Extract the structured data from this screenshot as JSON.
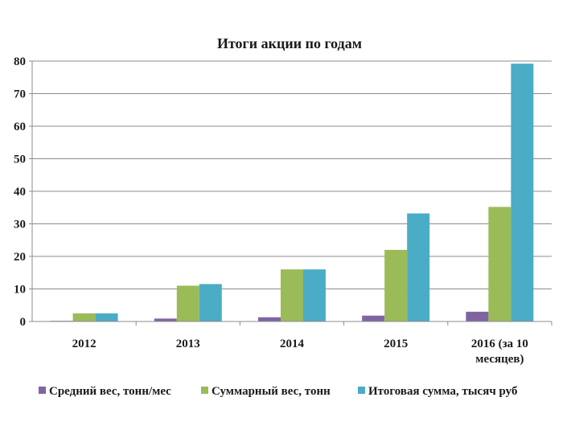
{
  "chart_data": {
    "type": "bar",
    "title": "Итоги акции по годам",
    "categories": [
      "2012",
      "2013",
      "2014",
      "2015",
      "2016 (за 10 месяцев)"
    ],
    "category_lines": [
      [
        "2012"
      ],
      [
        "2013"
      ],
      [
        "2014"
      ],
      [
        "2015"
      ],
      [
        "2016 (за 10",
        "месяцев)"
      ]
    ],
    "series": [
      {
        "name": "Средний вес, тонн/мес",
        "color": "#8064a2",
        "values": [
          0.2,
          0.9,
          1.3,
          1.8,
          3.0
        ]
      },
      {
        "name": "Суммарный вес, тонн",
        "color": "#9bbb59",
        "values": [
          2.5,
          11,
          16,
          22,
          35.2
        ]
      },
      {
        "name": "Итоговая сумма, тысяч руб",
        "color": "#4bacc6",
        "values": [
          2.5,
          11.5,
          16,
          33.2,
          79.2
        ]
      }
    ],
    "ylim": [
      0,
      80
    ],
    "yticks": [
      0,
      10,
      20,
      30,
      40,
      50,
      60,
      70,
      80
    ],
    "grid": true,
    "legend_position": "bottom"
  }
}
